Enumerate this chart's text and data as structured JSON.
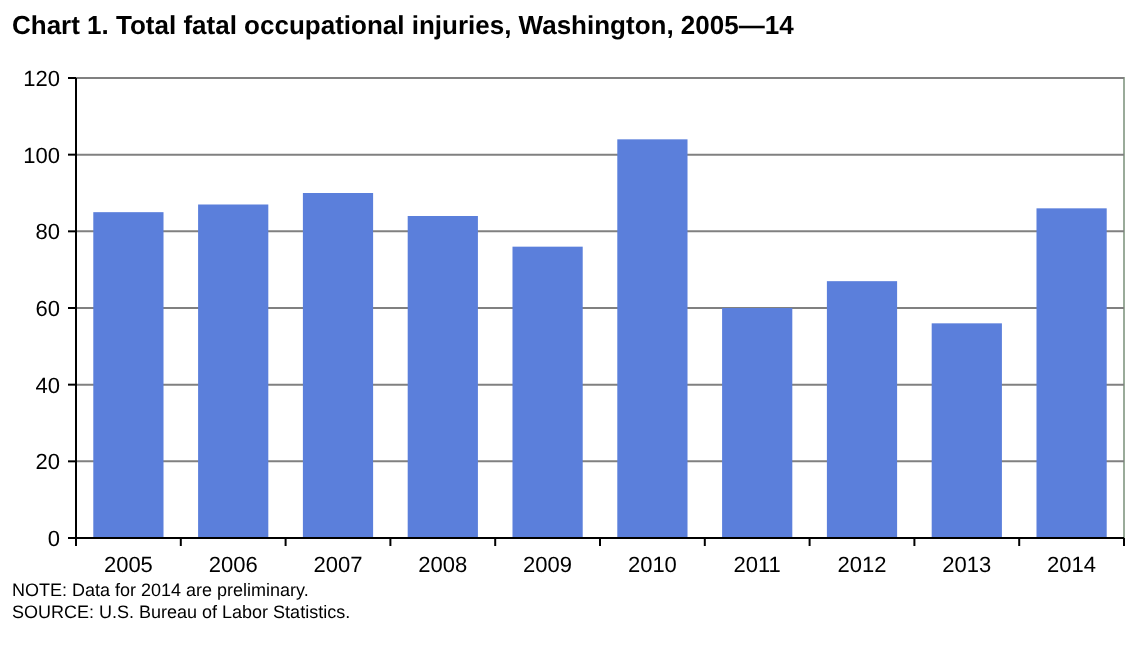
{
  "chart_data": {
    "type": "bar",
    "title": "Chart 1. Total fatal occupational injuries, Washington, 2005—14",
    "categories": [
      "2005",
      "2006",
      "2007",
      "2008",
      "2009",
      "2010",
      "2011",
      "2012",
      "2013",
      "2014"
    ],
    "values": [
      85,
      87,
      90,
      84,
      76,
      104,
      60,
      67,
      56,
      86
    ],
    "color": "#5b7fdb",
    "ylim": [
      0,
      120
    ],
    "yticks": [
      0,
      20,
      40,
      60,
      80,
      100,
      120
    ],
    "grid": "y",
    "annotations": [
      "NOTE: Data for 2014 are preliminary.",
      "SOURCE: U.S. Bureau of Labor Statistics."
    ]
  }
}
